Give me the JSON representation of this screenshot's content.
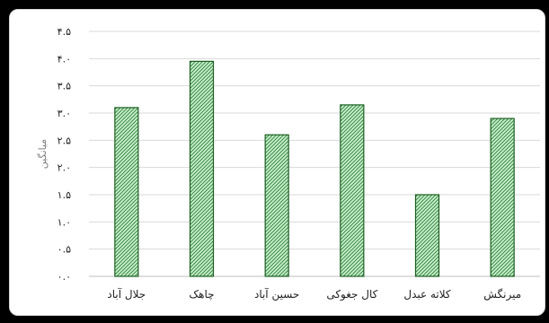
{
  "chart_data": {
    "type": "bar",
    "categories": [
      "جلال آباد",
      "چاهک",
      "حسین آباد",
      "کال جغوکی",
      "کلاته عبدل",
      "میرنگش"
    ],
    "values": [
      3.1,
      3.95,
      2.6,
      3.15,
      1.5,
      2.9
    ],
    "ylim": [
      0,
      4.5
    ],
    "ytick_values": [
      0,
      0.5,
      1,
      1.5,
      2,
      2.5,
      3,
      3.5,
      4,
      4.5
    ],
    "ytick_labels": [
      "۰.۰",
      "۰.۵",
      "۱.۰",
      "۱.۵",
      "۲.۰",
      "۲.۵",
      "۳.۰",
      "۳.۵",
      "۴.۰",
      "۴.۵"
    ],
    "ylabel": "میانگین",
    "xlabel": "",
    "title": "",
    "grid": true,
    "legend": "none",
    "colors": {
      "bar_fill": "#c6efce",
      "bar_hatch": "#2e7d32",
      "bar_border": "#1b5e20",
      "grid": "#d9d9d9",
      "axis": "#bfbfbf"
    }
  }
}
